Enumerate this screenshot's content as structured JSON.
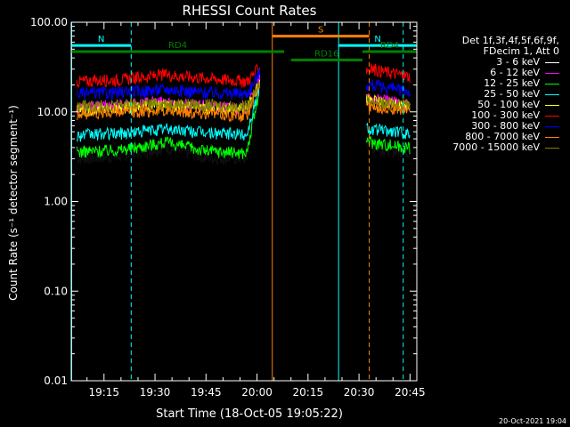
{
  "chart_data": {
    "type": "line",
    "title": "RHESSI Count Rates",
    "xlabel": "Start Time (18-Oct-05 19:05:22)",
    "ylabel": "Count Rate (s⁻¹ detector segment⁻¹)",
    "y_scale": "log",
    "ylim": [
      0.01,
      100
    ],
    "y_tick_labels": [
      "100.00",
      "10.00",
      "1.00",
      "0.10",
      "0.01"
    ],
    "x_range": [
      "19:05:22",
      "20:47"
    ],
    "x_tick_labels": [
      "19:15",
      "19:30",
      "19:45",
      "20:00",
      "20:15",
      "20:30",
      "20:45"
    ],
    "legend_header": [
      "Det 1f,3f,4f,5f,6f,9f,",
      "FDecim 1, Att 0"
    ],
    "series": [
      {
        "name": "3 - 6 keV",
        "color": "#000000",
        "points": [
          [
            "19:07",
            3.0
          ],
          [
            "19:20",
            3.2
          ],
          [
            "19:33",
            4.0
          ],
          [
            "19:45",
            3.1
          ],
          [
            "19:57",
            3.0
          ],
          [
            "20:01",
            20
          ],
          [
            "20:34",
            4.0
          ],
          [
            "20:45",
            3.5
          ]
        ]
      },
      {
        "name": "6 - 12 keV",
        "color": "#ff00ff",
        "points": [
          [
            "19:07",
            11.0
          ],
          [
            "19:20",
            12.0
          ],
          [
            "19:33",
            13.0
          ],
          [
            "19:45",
            11.5
          ],
          [
            "19:57",
            11.0
          ],
          [
            "20:01",
            24
          ],
          [
            "20:34",
            14.0
          ],
          [
            "20:45",
            12.0
          ]
        ]
      },
      {
        "name": "12 - 25 keV",
        "color": "#00ff00",
        "points": [
          [
            "19:07",
            3.6
          ],
          [
            "19:20",
            3.8
          ],
          [
            "19:33",
            4.6
          ],
          [
            "19:45",
            3.7
          ],
          [
            "19:57",
            3.5
          ],
          [
            "20:01",
            20
          ],
          [
            "20:34",
            4.6
          ],
          [
            "20:45",
            4.0
          ]
        ]
      },
      {
        "name": "25 - 50 keV",
        "color": "#00ffff",
        "points": [
          [
            "19:07",
            5.5
          ],
          [
            "19:20",
            5.8
          ],
          [
            "19:33",
            6.5
          ],
          [
            "19:45",
            5.9
          ],
          [
            "19:57",
            5.6
          ],
          [
            "20:01",
            21
          ],
          [
            "20:34",
            6.4
          ],
          [
            "20:45",
            5.8
          ]
        ]
      },
      {
        "name": "50 - 100 keV",
        "color": "#ffff00",
        "points": [
          [
            "19:07",
            10.5
          ],
          [
            "19:20",
            11.2
          ],
          [
            "19:33",
            12.0
          ],
          [
            "19:45",
            11.0
          ],
          [
            "19:57",
            10.8
          ],
          [
            "20:01",
            23
          ],
          [
            "20:34",
            13.5
          ],
          [
            "20:45",
            11.5
          ]
        ]
      },
      {
        "name": "100 - 300 keV",
        "color": "#ff0000",
        "points": [
          [
            "19:07",
            22
          ],
          [
            "19:20",
            23
          ],
          [
            "19:33",
            26
          ],
          [
            "19:45",
            24
          ],
          [
            "19:57",
            22
          ],
          [
            "20:01",
            32
          ],
          [
            "20:34",
            30
          ],
          [
            "20:45",
            25
          ]
        ]
      },
      {
        "name": "300 - 800 keV",
        "color": "#0000ff",
        "points": [
          [
            "19:07",
            16
          ],
          [
            "19:20",
            16.5
          ],
          [
            "19:33",
            18
          ],
          [
            "19:45",
            16.5
          ],
          [
            "19:57",
            16
          ],
          [
            "20:01",
            28
          ],
          [
            "20:34",
            20
          ],
          [
            "20:45",
            17
          ]
        ]
      },
      {
        "name": "800 - 7000 keV",
        "color": "#ff8000",
        "points": [
          [
            "19:07",
            9.5
          ],
          [
            "19:20",
            10.0
          ],
          [
            "19:33",
            10.5
          ],
          [
            "19:45",
            9.8
          ],
          [
            "19:57",
            9.0
          ],
          [
            "20:01",
            22
          ],
          [
            "20:34",
            11.5
          ],
          [
            "20:45",
            10.5
          ]
        ]
      },
      {
        "name": "7000 - 15000 keV",
        "color": "#808000",
        "points": [
          [
            "19:07",
            11.5
          ],
          [
            "19:20",
            12.0
          ],
          [
            "19:33",
            12.5
          ],
          [
            "19:45",
            12.0
          ],
          [
            "19:57",
            11.5
          ],
          [
            "20:01",
            22
          ],
          [
            "20:34",
            13.0
          ],
          [
            "20:45",
            12.0
          ]
        ]
      }
    ],
    "markers": [
      {
        "label": "N",
        "color": "#00ffff",
        "y": 55,
        "start": "19:05:22",
        "end": "19:23"
      },
      {
        "label": "N",
        "color": "#00ffff",
        "y": 55,
        "start": "20:24",
        "end": "20:47"
      },
      {
        "label": "S",
        "color": "#ff8000",
        "y": 70,
        "start": "20:04:30",
        "end": "20:33"
      },
      {
        "label": "RD4",
        "color": "#008000",
        "y": 47,
        "start": "19:05:22",
        "end": "20:08"
      },
      {
        "label": "RD4",
        "color": "#008000",
        "y": 47,
        "start": "20:31",
        "end": "20:47"
      },
      {
        "label": "RD16",
        "color": "#008000",
        "y": 38,
        "start": "20:10",
        "end": "20:31"
      }
    ],
    "vertical_lines": [
      {
        "time": "19:05:30",
        "color": "#00ffff",
        "style": "solid"
      },
      {
        "time": "19:23",
        "color": "#00ffff",
        "style": "dashed"
      },
      {
        "time": "20:04:30",
        "color": "#ff8000",
        "style": "solid"
      },
      {
        "time": "20:24",
        "color": "#00ffff",
        "style": "solid"
      },
      {
        "time": "20:33",
        "color": "#ff8000",
        "style": "dashed"
      },
      {
        "time": "20:43",
        "color": "#00ffff",
        "style": "dashed"
      }
    ],
    "data_gap": [
      "20:01",
      "20:32"
    ],
    "grid": false,
    "legend_position": "right"
  },
  "timestamp": "20-Oct-2021 19:04"
}
